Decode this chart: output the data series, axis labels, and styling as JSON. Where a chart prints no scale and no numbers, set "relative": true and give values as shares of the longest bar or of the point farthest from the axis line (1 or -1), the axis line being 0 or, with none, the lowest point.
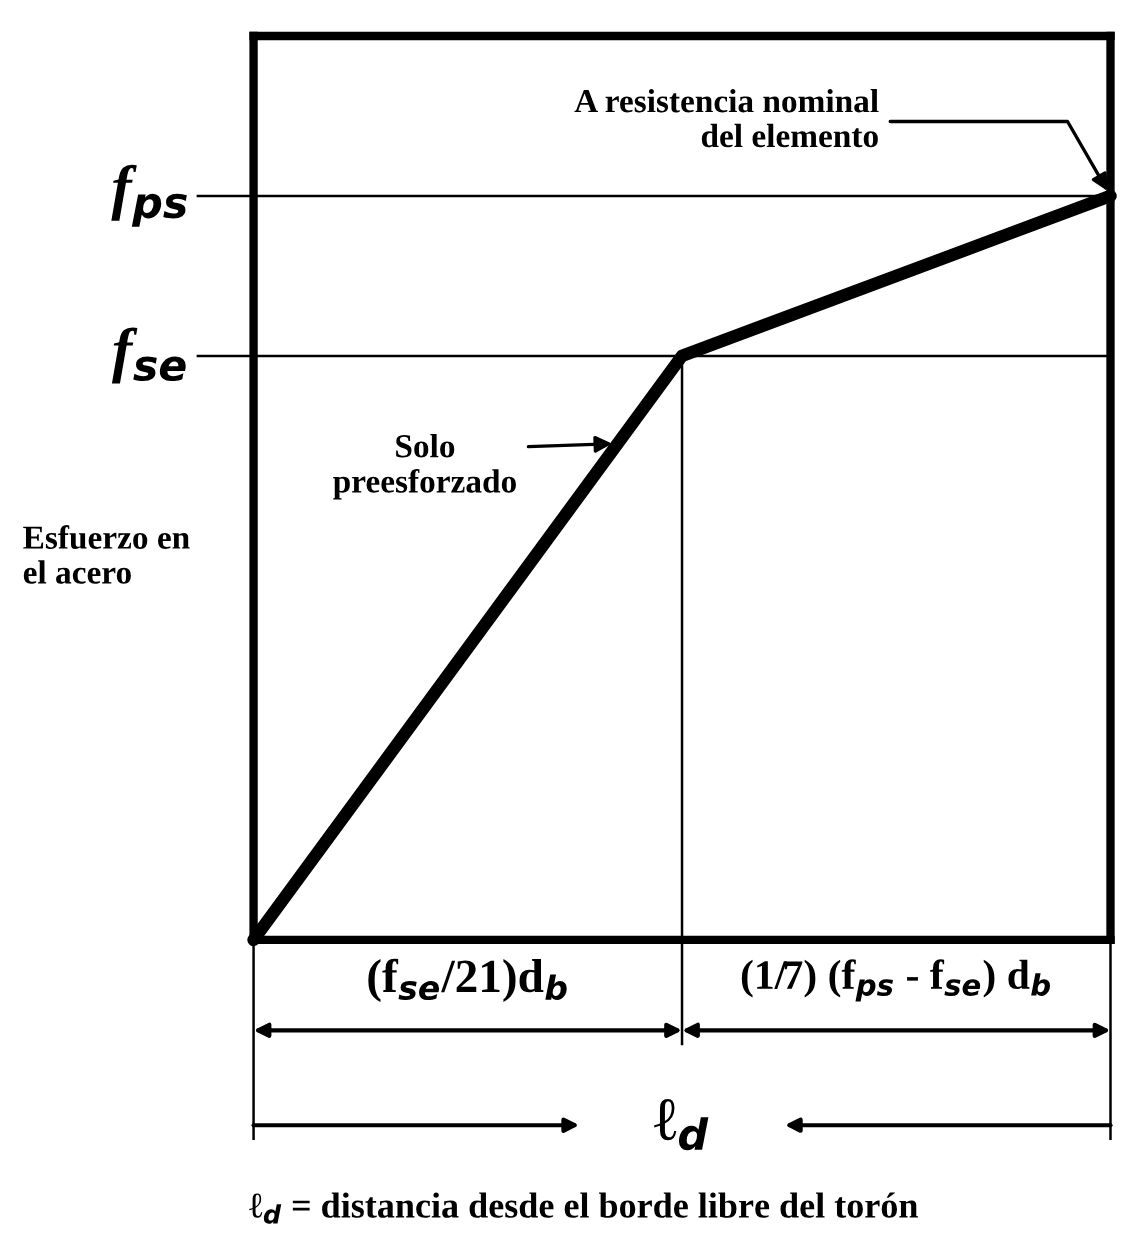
{
  "chart_data": {
    "type": "line",
    "relative": true,
    "ylabel": "Esfuerzo en\nel acero",
    "categories": [
      null,
      null,
      null
    ],
    "series": [
      {
        "color": "#000000",
        "values": [
          0,
          0.785,
          1
        ]
      }
    ],
    "ref_lines": [
      {
        "axis": "y",
        "value": 1,
        "label": "f$_{ps}$",
        "color": "#000000"
      },
      {
        "axis": "y",
        "value": 0.785,
        "label": "f$_{se}$",
        "color": "#000000"
      }
    ],
    "annotations": [
      "A resistencia nominal\ndel elemento",
      "Solo\npreesforzado",
      "(f$_{se}$/21)d$_{b}$",
      "(1/7) (f$_{ps}$ - f$_{se}$) d$_{b}$",
      "ℓ$_{d}$",
      "ℓ$_{d}$ = distancia desde el borde libre del torón"
    ]
  }
}
